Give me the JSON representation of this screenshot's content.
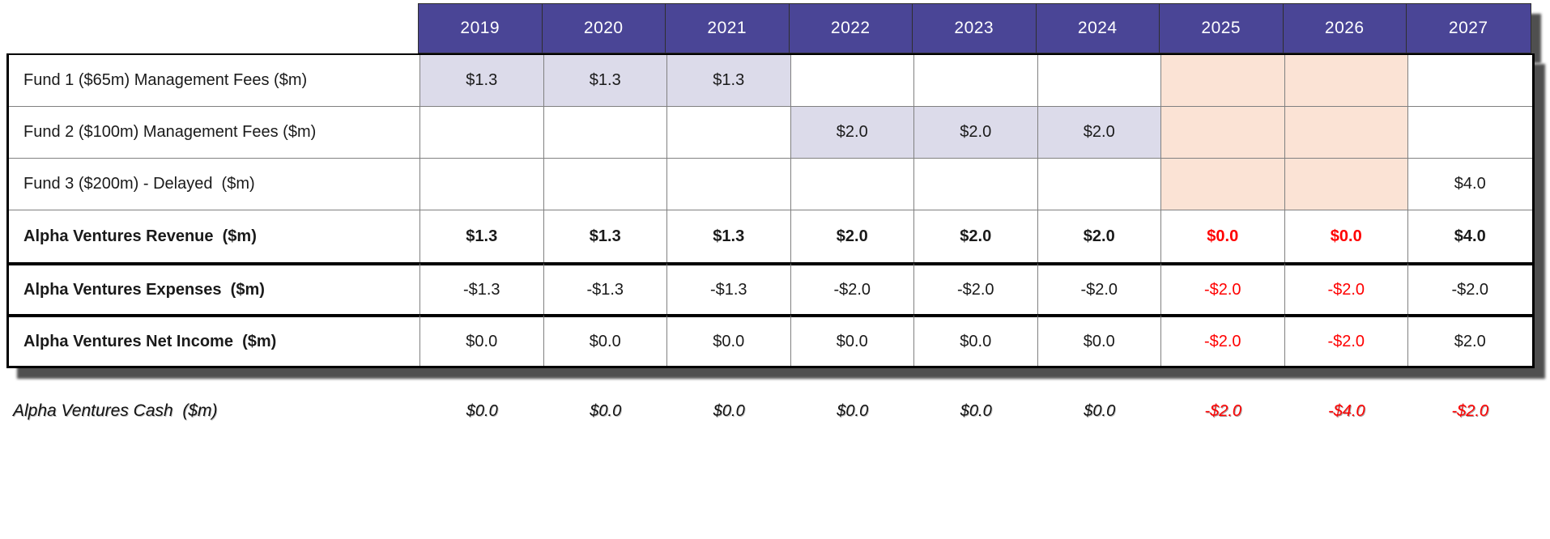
{
  "colors": {
    "page_bg": "#ffffff",
    "header_bg": "#4a4596",
    "header_text": "#ffffff",
    "lavender": "#dcdbea",
    "peach": "#fbe3d5",
    "negative_red": "#ff0000",
    "thin_border": "#808080",
    "thick_border": "#000000",
    "shadow": "#4f4f4f"
  },
  "table": {
    "years": [
      "2019",
      "2020",
      "2021",
      "2022",
      "2023",
      "2024",
      "2025",
      "2026",
      "2027"
    ],
    "rows": [
      {
        "label": "Fund 1 ($65m) Management Fees ($m)",
        "values": [
          "$1.3",
          "$1.3",
          "$1.3",
          "",
          "",
          "",
          "",
          "",
          ""
        ]
      },
      {
        "label": "Fund 2 ($100m) Management Fees ($m)",
        "values": [
          "",
          "",
          "",
          "$2.0",
          "$2.0",
          "$2.0",
          "",
          "",
          ""
        ]
      },
      {
        "label": "Fund 3 ($200m) - Delayed  ($m)",
        "values": [
          "",
          "",
          "",
          "",
          "",
          "",
          "",
          "",
          "$4.0"
        ]
      },
      {
        "label": "Alpha Ventures Revenue  ($m)",
        "values": [
          "$1.3",
          "$1.3",
          "$1.3",
          "$2.0",
          "$2.0",
          "$2.0",
          "$0.0",
          "$0.0",
          "$4.0"
        ]
      },
      {
        "label": "Alpha Ventures Expenses  ($m)",
        "values": [
          "-$1.3",
          "-$1.3",
          "-$1.3",
          "-$2.0",
          "-$2.0",
          "-$2.0",
          "-$2.0",
          "-$2.0",
          "-$2.0"
        ]
      },
      {
        "label": "Alpha Ventures Net Income  ($m)",
        "values": [
          "$0.0",
          "$0.0",
          "$0.0",
          "$0.0",
          "$0.0",
          "$0.0",
          "-$2.0",
          "-$2.0",
          "$2.0"
        ]
      }
    ],
    "cash_row": {
      "label": "Alpha Ventures Cash  ($m)",
      "values": [
        "$0.0",
        "$0.0",
        "$0.0",
        "$0.0",
        "$0.0",
        "$0.0",
        "-$2.0",
        "-$4.0",
        "-$2.0"
      ]
    }
  },
  "chart_data": {
    "type": "table",
    "columns": [
      "",
      "2019",
      "2020",
      "2021",
      "2022",
      "2023",
      "2024",
      "2025",
      "2026",
      "2027"
    ],
    "rows": [
      [
        "Fund 1 ($65m) Management Fees ($m)",
        "$1.3",
        "$1.3",
        "$1.3",
        "",
        "",
        "",
        "",
        "",
        ""
      ],
      [
        "Fund 2 ($100m) Management Fees ($m)",
        "",
        "",
        "",
        "$2.0",
        "$2.0",
        "$2.0",
        "",
        "",
        ""
      ],
      [
        "Fund 3 ($200m) - Delayed  ($m)",
        "",
        "",
        "",
        "",
        "",
        "",
        "",
        "",
        "$4.0"
      ],
      [
        "Alpha Ventures Revenue  ($m)",
        "$1.3",
        "$1.3",
        "$1.3",
        "$2.0",
        "$2.0",
        "$2.0",
        "$0.0",
        "$0.0",
        "$4.0"
      ],
      [
        "Alpha Ventures Expenses  ($m)",
        "-$1.3",
        "-$1.3",
        "-$1.3",
        "-$2.0",
        "-$2.0",
        "-$2.0",
        "-$2.0",
        "-$2.0",
        "-$2.0"
      ],
      [
        "Alpha Ventures Net Income  ($m)",
        "$0.0",
        "$0.0",
        "$0.0",
        "$0.0",
        "$0.0",
        "$0.0",
        "-$2.0",
        "-$2.0",
        "$2.0"
      ],
      [
        "Alpha Ventures Cash  ($m)",
        "$0.0",
        "$0.0",
        "$0.0",
        "$0.0",
        "$0.0",
        "$0.0",
        "-$2.0",
        "-$4.0",
        "-$2.0"
      ]
    ],
    "notes": {
      "highlight_lavender_cells": "Fund 1 row 2019-2021; Fund 2 row 2022-2024",
      "highlight_peach_cells": "Fund rows 1-3 for 2025 and 2026",
      "red_values": "2025/2026 revenue, expenses, net income; 2025-2027 cash"
    }
  }
}
